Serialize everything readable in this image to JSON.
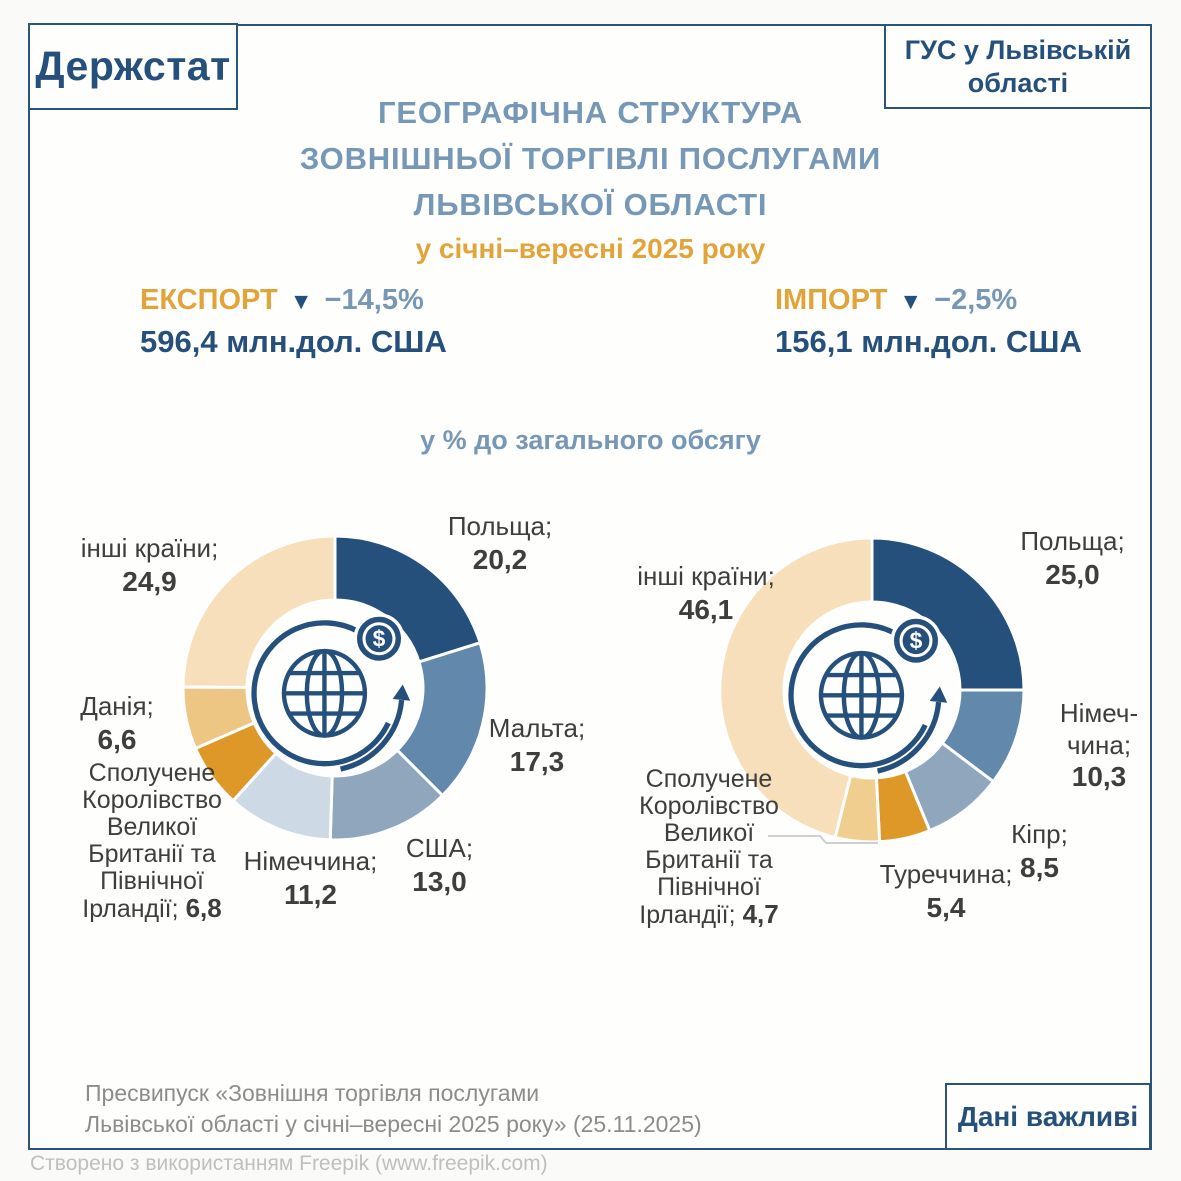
{
  "header": {
    "logo": "Держстат",
    "office": "ГУС у Львівській\nобласті",
    "title_line1": "ГЕОГРАФІЧНА СТРУКТУРА",
    "title_line2": "ЗОВНІШНЬОЇ ТОРГІВЛІ ПОСЛУГАМИ",
    "title_line3": "ЛЬВІВСЬКОЇ ОБЛАСТІ",
    "subtitle": "у січні–вересні 2025 року"
  },
  "stats": {
    "export_label": "ЕКСПОРТ",
    "export_arrow": "▼",
    "export_change": "−14,5%",
    "export_value": "596,4 млн.дол. США",
    "import_label": "ІМПОРТ",
    "import_arrow": "▼",
    "import_change": "−2,5%",
    "import_value": "156,1 млн.дол. США"
  },
  "note": "у % до загального обсягу",
  "chart_data": [
    {
      "type": "pie",
      "name": "ЕКСПОРТ",
      "unit": "% до загального обсягу",
      "categories": [
        "Польща",
        "Мальта",
        "США",
        "Німеччина",
        "Сполучене Королівство Великої Британії та Північної Ірландії",
        "Данія",
        "інші країни"
      ],
      "values": [
        20.2,
        17.3,
        13.0,
        11.2,
        6.8,
        6.6,
        24.9
      ],
      "colors": [
        "#26507C",
        "#6288AC",
        "#8FA6BC",
        "#CDD9E5",
        "#DE9828",
        "#EEC683",
        "#F6DFBA"
      ],
      "donut": true,
      "start_angle_deg": 0,
      "clockwise": true
    },
    {
      "type": "pie",
      "name": "ІМПОРТ",
      "unit": "% до загального обсягу",
      "categories": [
        "Польща",
        "Німеччина",
        "Кіпр",
        "Туреччина",
        "Сполучене Королівство Великої Британії та Північної Ірландії",
        "інші країни"
      ],
      "values": [
        25.0,
        10.3,
        8.5,
        5.4,
        4.7,
        46.1
      ],
      "colors": [
        "#26507C",
        "#6288AC",
        "#8FA6BC",
        "#DE9828",
        "#F0CE90",
        "#F6DFBA"
      ],
      "donut": true,
      "start_angle_deg": 0,
      "clockwise": true
    }
  ],
  "callouts": {
    "export": {
      "poland": {
        "name": "Польща;",
        "value": "20,2"
      },
      "malta": {
        "name": "Мальта;",
        "value": "17,3"
      },
      "usa": {
        "name": "США;",
        "value": "13,0"
      },
      "germany": {
        "name": "Німеччина;",
        "value": "11,2"
      },
      "uk": {
        "name": "Сполучене\nКоролівство\nВеликої\nБританії та\nПівнічної\nІрландії;",
        "value": "6,8"
      },
      "denmark": {
        "name": "Данія;",
        "value": "6,6"
      },
      "others": {
        "name": "інші країни;",
        "value": "24,9"
      }
    },
    "import": {
      "poland": {
        "name": "Польща;",
        "value": "25,0"
      },
      "germany": {
        "name": "Німеч-\nчина;",
        "value": "10,3"
      },
      "cyprus": {
        "name": "Кіпр;",
        "value": "8,5"
      },
      "turkey": {
        "name": "Туреччина;",
        "value": "5,4"
      },
      "uk": {
        "name": "Сполучене\nКоролівство\nВеликої\nБританії та\nПівнічної\nІрландії;",
        "value": "4,7"
      },
      "others": {
        "name": "інші країни;",
        "value": "46,1"
      }
    }
  },
  "footer": {
    "press_release": "Пресвипуск «Зовнішня торгівля послугами\nЛьвівської області у січні–вересні 2025 року» (25.11.2025)",
    "badge": "Дані важливі",
    "credit": "Створено з використанням Freepik (www.freepik.com)"
  },
  "colors": {
    "border_blue": "#2A5578",
    "dark_blue": "#26507C",
    "steel_blue": "#7697B6",
    "orange": "#E2A339",
    "label_gray": "#3E3E3E",
    "press_gray": "#8C8C8C"
  }
}
